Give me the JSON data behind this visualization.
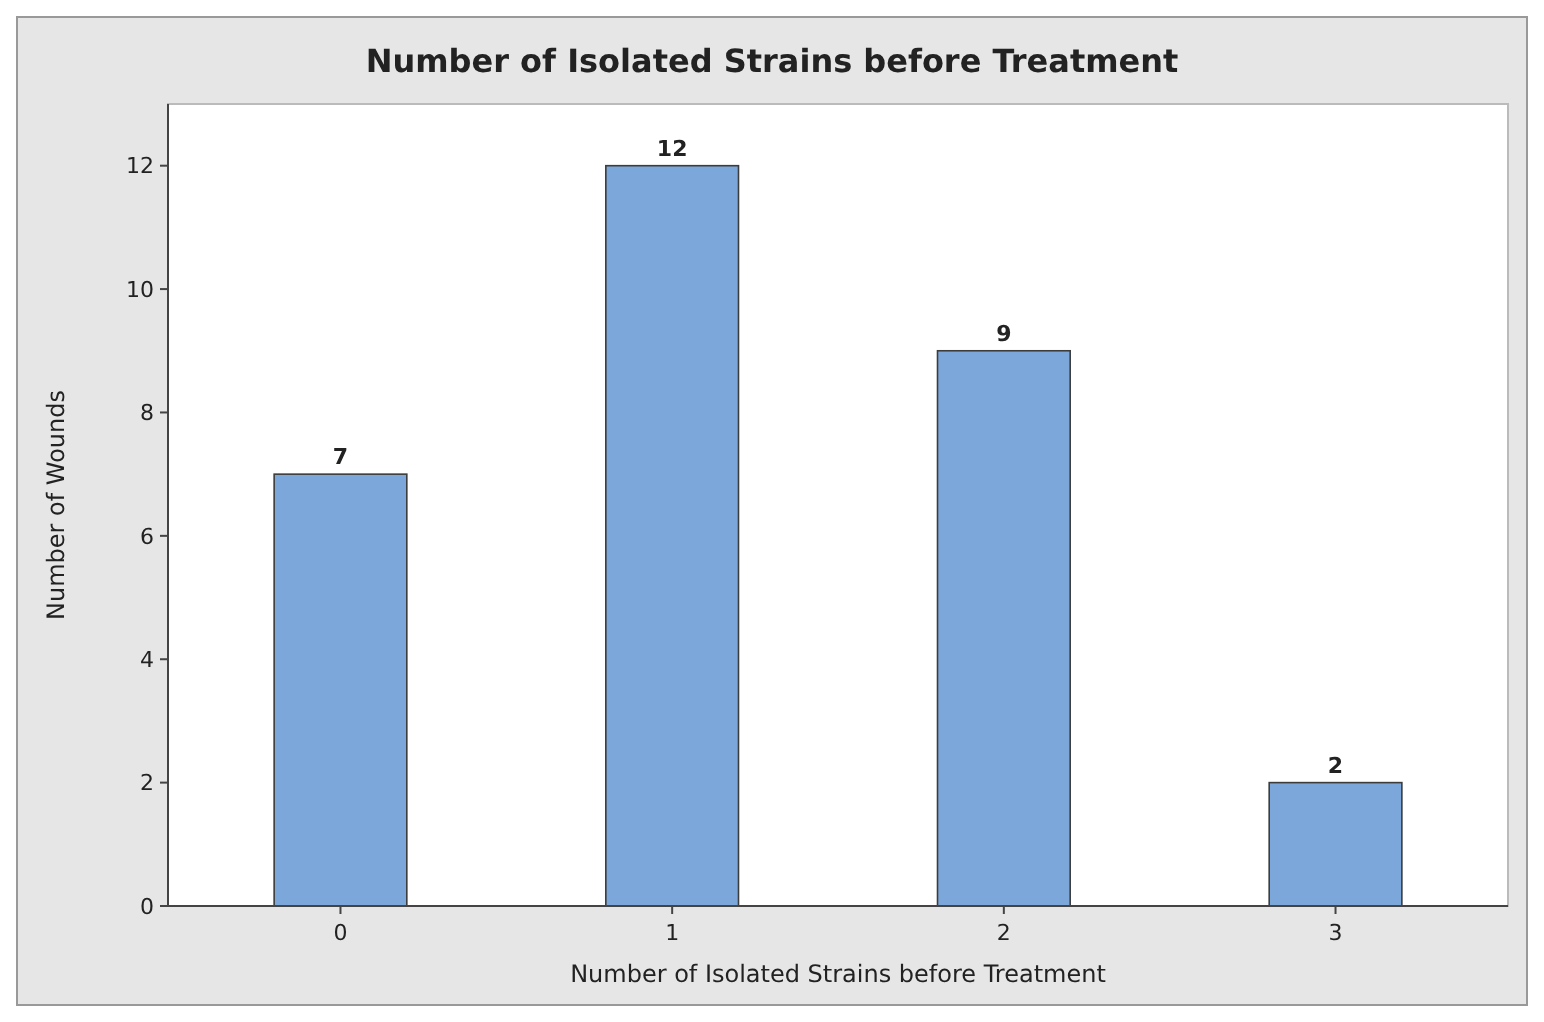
{
  "chart_data": {
    "type": "bar",
    "title": "Number of Isolated Strains before Treatment",
    "xlabel": "Number of Isolated Strains before Treatment",
    "ylabel": "Number of Wounds",
    "categories": [
      "0",
      "1",
      "2",
      "3"
    ],
    "values": [
      7,
      12,
      9,
      2
    ],
    "color": "#7ba7db",
    "ylim": [
      0,
      13
    ],
    "yticks": [
      0,
      2,
      4,
      6,
      8,
      10,
      12
    ],
    "data_labels": true
  }
}
